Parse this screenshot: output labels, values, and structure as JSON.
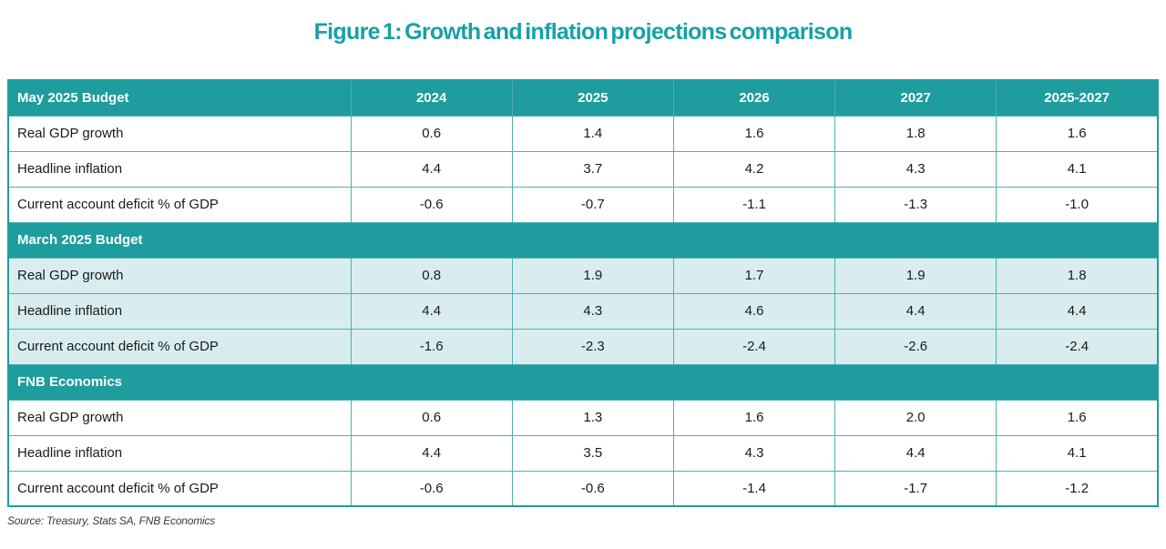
{
  "colors": {
    "teal_header": "#1e9c9e",
    "title_teal": "#17a0a6",
    "grid_teal": "#4fb0b3",
    "tint_row": "#d9edef",
    "text_dark": "#1b1b1b"
  },
  "chart_data": {
    "type": "table",
    "title": "Figure 1: Growth and inflation projections comparison",
    "source": "Source: Treasury, Stats SA, FNB Economics",
    "columns": [
      "",
      "2024",
      "2025",
      "2026",
      "2027",
      "2025-2027"
    ],
    "sections": [
      {
        "header": "May 2025 Budget",
        "show_years": true,
        "tint": false,
        "rows": [
          {
            "label": "Real GDP growth",
            "values": [
              "0.6",
              "1.4",
              "1.6",
              "1.8",
              "1.6"
            ]
          },
          {
            "label": "Headline inflation",
            "values": [
              "4.4",
              "3.7",
              "4.2",
              "4.3",
              "4.1"
            ]
          },
          {
            "label": "Current account deficit % of GDP",
            "values": [
              "-0.6",
              "-0.7",
              "-1.1",
              "-1.3",
              "-1.0"
            ]
          }
        ]
      },
      {
        "header": "March 2025 Budget",
        "show_years": false,
        "tint": true,
        "rows": [
          {
            "label": "Real GDP growth",
            "values": [
              "0.8",
              "1.9",
              "1.7",
              "1.9",
              "1.8"
            ]
          },
          {
            "label": "Headline inflation",
            "values": [
              "4.4",
              "4.3",
              "4.6",
              "4.4",
              "4.4"
            ]
          },
          {
            "label": "Current account deficit % of GDP",
            "values": [
              "-1.6",
              "-2.3",
              "-2.4",
              "-2.6",
              "-2.4"
            ]
          }
        ]
      },
      {
        "header": "FNB Economics",
        "show_years": false,
        "tint": false,
        "rows": [
          {
            "label": "Real GDP growth",
            "values": [
              "0.6",
              "1.3",
              "1.6",
              "2.0",
              "1.6"
            ]
          },
          {
            "label": "Headline inflation",
            "values": [
              "4.4",
              "3.5",
              "4.3",
              "4.4",
              "4.1"
            ]
          },
          {
            "label": "Current account deficit % of GDP",
            "values": [
              "-0.6",
              "-0.6",
              "-1.4",
              "-1.7",
              "-1.2"
            ]
          }
        ]
      }
    ]
  }
}
